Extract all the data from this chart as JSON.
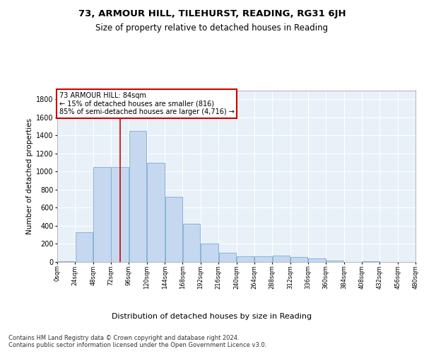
{
  "title": "73, ARMOUR HILL, TILEHURST, READING, RG31 6JH",
  "subtitle": "Size of property relative to detached houses in Reading",
  "xlabel": "Distribution of detached houses by size in Reading",
  "ylabel": "Number of detached properties",
  "bar_color": "#c5d8f0",
  "bar_edge_color": "#7aadd4",
  "plot_bg_color": "#e8f0f8",
  "bins": [
    0,
    24,
    48,
    72,
    96,
    120,
    144,
    168,
    192,
    216,
    240,
    264,
    288,
    312,
    336,
    360,
    384,
    408,
    432,
    456,
    480
  ],
  "values": [
    5,
    330,
    1050,
    1050,
    1450,
    1100,
    720,
    420,
    200,
    105,
    60,
    65,
    70,
    55,
    40,
    15,
    0,
    10,
    0,
    0
  ],
  "property_size": 84,
  "annotation_text": "73 ARMOUR HILL: 84sqm\n← 15% of detached houses are smaller (816)\n85% of semi-detached houses are larger (4,716) →",
  "annotation_box_color": "#ffffff",
  "annotation_box_edge": "#cc0000",
  "vline_color": "#cc0000",
  "vline_x": 84,
  "ylim": [
    0,
    1900
  ],
  "yticks": [
    0,
    200,
    400,
    600,
    800,
    1000,
    1200,
    1400,
    1600,
    1800
  ],
  "footnote1": "Contains HM Land Registry data © Crown copyright and database right 2024.",
  "footnote2": "Contains public sector information licensed under the Open Government Licence v3.0."
}
